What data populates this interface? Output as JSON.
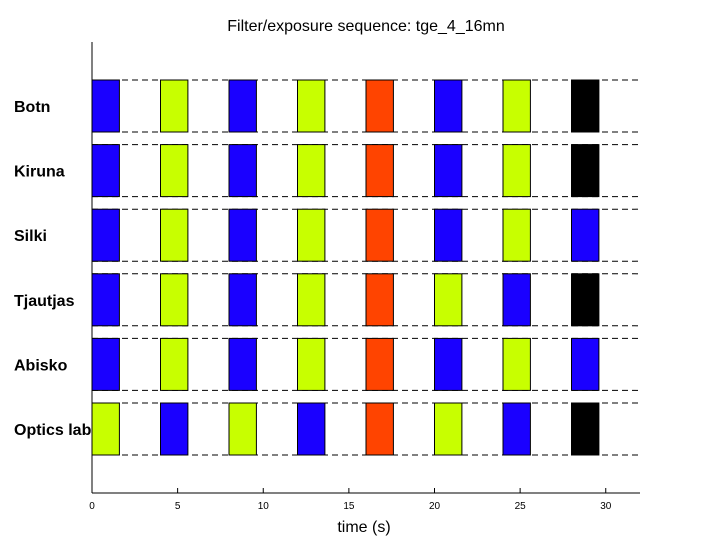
{
  "chart_data": {
    "type": "bar",
    "title": "Filter/exposure sequence: tge_4_16mn",
    "xlabel": "time (s)",
    "ylabel": "",
    "xlim": [
      0,
      32
    ],
    "xticks": [
      0,
      5,
      10,
      15,
      20,
      25,
      30
    ],
    "grid": false,
    "legend": "none",
    "exposure_duration_s": 1.6,
    "exposure_starts_s": [
      0,
      4,
      8,
      12,
      16,
      20,
      24,
      28
    ],
    "colors": {
      "blue": "#1a00ff",
      "green": "#c8ff00",
      "red": "#ff4400",
      "black": "#000000"
    },
    "rows": [
      {
        "name": "Botn",
        "filters": [
          "blue",
          "green",
          "blue",
          "green",
          "red",
          "blue",
          "green",
          "black"
        ]
      },
      {
        "name": "Kiruna",
        "filters": [
          "blue",
          "green",
          "blue",
          "green",
          "red",
          "blue",
          "green",
          "black"
        ]
      },
      {
        "name": "Silki",
        "filters": [
          "blue",
          "green",
          "blue",
          "green",
          "red",
          "blue",
          "green",
          "blue"
        ]
      },
      {
        "name": "Tjautjas",
        "filters": [
          "blue",
          "green",
          "blue",
          "green",
          "red",
          "green",
          "blue",
          "black"
        ]
      },
      {
        "name": "Abisko",
        "filters": [
          "blue",
          "green",
          "blue",
          "green",
          "red",
          "blue",
          "green",
          "blue"
        ]
      },
      {
        "name": "Optics lab",
        "filters": [
          "green",
          "blue",
          "green",
          "blue",
          "red",
          "green",
          "blue",
          "black"
        ]
      }
    ]
  }
}
